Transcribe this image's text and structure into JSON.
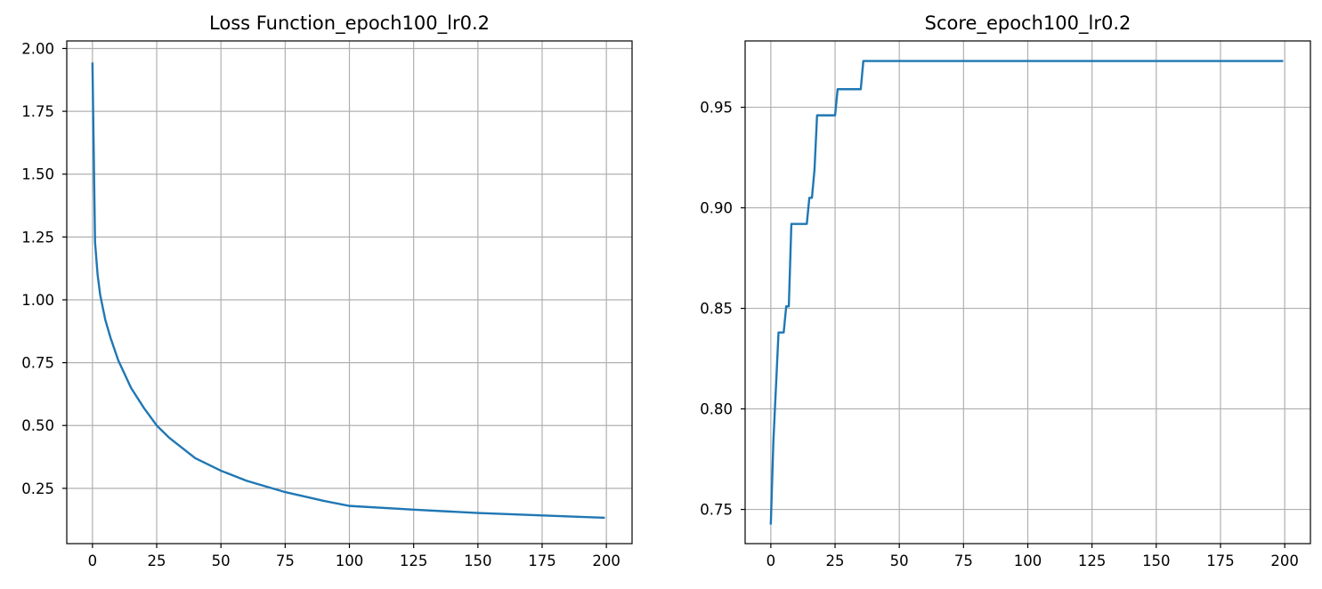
{
  "chart_data": [
    {
      "type": "line",
      "title": "Loss Function_epoch100_lr0.2",
      "xlabel": "",
      "ylabel": "",
      "xlim": [
        -10,
        210
      ],
      "ylim": [
        0.03,
        2.03
      ],
      "x_ticks": [
        0,
        25,
        50,
        75,
        100,
        125,
        150,
        175,
        200
      ],
      "x_tick_labels": [
        "0",
        "25",
        "50",
        "75",
        "100",
        "125",
        "150",
        "175",
        "200"
      ],
      "y_ticks": [
        0.25,
        0.5,
        0.75,
        1.0,
        1.25,
        1.5,
        1.75,
        2.0
      ],
      "y_tick_labels": [
        "0.25",
        "0.50",
        "0.75",
        "1.00",
        "1.25",
        "1.50",
        "1.75",
        "2.00"
      ],
      "grid": true,
      "color": "#1f77b4",
      "series": [
        {
          "x": [
            0,
            1,
            2,
            3,
            5,
            7,
            10,
            15,
            20,
            25,
            30,
            40,
            50,
            60,
            75,
            90,
            100,
            125,
            150,
            175,
            199
          ],
          "y": [
            1.94,
            1.23,
            1.1,
            1.02,
            0.92,
            0.85,
            0.76,
            0.65,
            0.57,
            0.5,
            0.45,
            0.37,
            0.32,
            0.28,
            0.235,
            0.2,
            0.18,
            0.165,
            0.152,
            0.142,
            0.133
          ]
        }
      ]
    },
    {
      "type": "line",
      "title": "Score_epoch100_lr0.2",
      "xlabel": "",
      "ylabel": "",
      "xlim": [
        -10,
        210
      ],
      "ylim": [
        0.733,
        0.983
      ],
      "x_ticks": [
        0,
        25,
        50,
        75,
        100,
        125,
        150,
        175,
        200
      ],
      "x_tick_labels": [
        "0",
        "25",
        "50",
        "75",
        "100",
        "125",
        "150",
        "175",
        "200"
      ],
      "y_ticks": [
        0.75,
        0.8,
        0.85,
        0.9,
        0.95
      ],
      "y_tick_labels": [
        "0.75",
        "0.80",
        "0.85",
        "0.90",
        "0.95"
      ],
      "grid": true,
      "color": "#1f77b4",
      "series": [
        {
          "x": [
            0,
            1,
            2,
            3,
            4,
            5,
            6,
            7,
            8,
            9,
            10,
            11,
            12,
            13,
            14,
            15,
            16,
            17,
            18,
            19,
            20,
            21,
            22,
            23,
            24,
            25,
            26,
            27,
            28,
            29,
            30,
            31,
            32,
            33,
            34,
            35,
            36,
            37,
            40,
            50,
            75,
            100,
            125,
            150,
            175,
            199
          ],
          "y": [
            0.743,
            0.784,
            0.811,
            0.838,
            0.838,
            0.838,
            0.851,
            0.851,
            0.892,
            0.892,
            0.892,
            0.892,
            0.892,
            0.892,
            0.892,
            0.905,
            0.905,
            0.919,
            0.946,
            0.946,
            0.946,
            0.946,
            0.946,
            0.946,
            0.946,
            0.946,
            0.959,
            0.959,
            0.959,
            0.959,
            0.959,
            0.959,
            0.959,
            0.959,
            0.959,
            0.959,
            0.973,
            0.973,
            0.973,
            0.973,
            0.973,
            0.973,
            0.973,
            0.973,
            0.973,
            0.973
          ]
        }
      ]
    }
  ]
}
